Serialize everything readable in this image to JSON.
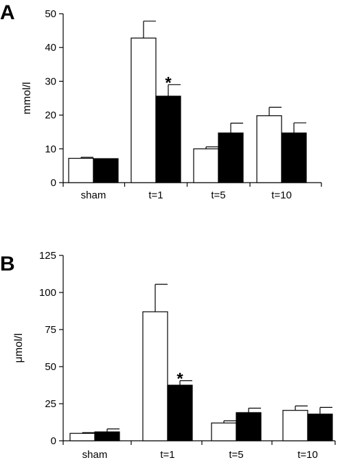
{
  "chart_data": [
    {
      "type": "bar",
      "panel_label": "A",
      "ylabel": "mmol/l",
      "xlabel": "",
      "ylim": [
        0,
        50
      ],
      "yticks": [
        0,
        10,
        20,
        30,
        40,
        50
      ],
      "categories": [
        "sham",
        "t=1",
        "t=5",
        "t=10"
      ],
      "series": [
        {
          "fill": "#ffffff",
          "values": [
            7.2,
            42.8,
            10.0,
            19.8
          ],
          "errors": [
            0.3,
            5.0,
            0.6,
            2.5
          ]
        },
        {
          "fill": "#000000",
          "values": [
            7.1,
            25.6,
            14.7,
            14.7
          ],
          "errors": [
            0.0,
            3.4,
            2.9,
            3.0
          ]
        }
      ],
      "annotations": [
        {
          "category": "t=1",
          "series": 1,
          "text": "*"
        }
      ]
    },
    {
      "type": "bar",
      "panel_label": "B",
      "ylabel": "μmol/l",
      "xlabel": "",
      "ylim": [
        0,
        125
      ],
      "yticks": [
        0,
        25,
        50,
        75,
        100,
        125
      ],
      "categories": [
        "sham",
        "t=1",
        "t=5",
        "t=10"
      ],
      "series": [
        {
          "fill": "#ffffff",
          "values": [
            5.0,
            87.0,
            12.0,
            20.5
          ],
          "errors": [
            0.5,
            18.5,
            1.5,
            3.0
          ]
        },
        {
          "fill": "#000000",
          "values": [
            6.0,
            37.5,
            19.0,
            18.0
          ],
          "errors": [
            2.0,
            3.0,
            3.0,
            4.5
          ]
        }
      ],
      "annotations": [
        {
          "category": "t=1",
          "series": 1,
          "text": "*"
        }
      ]
    }
  ]
}
